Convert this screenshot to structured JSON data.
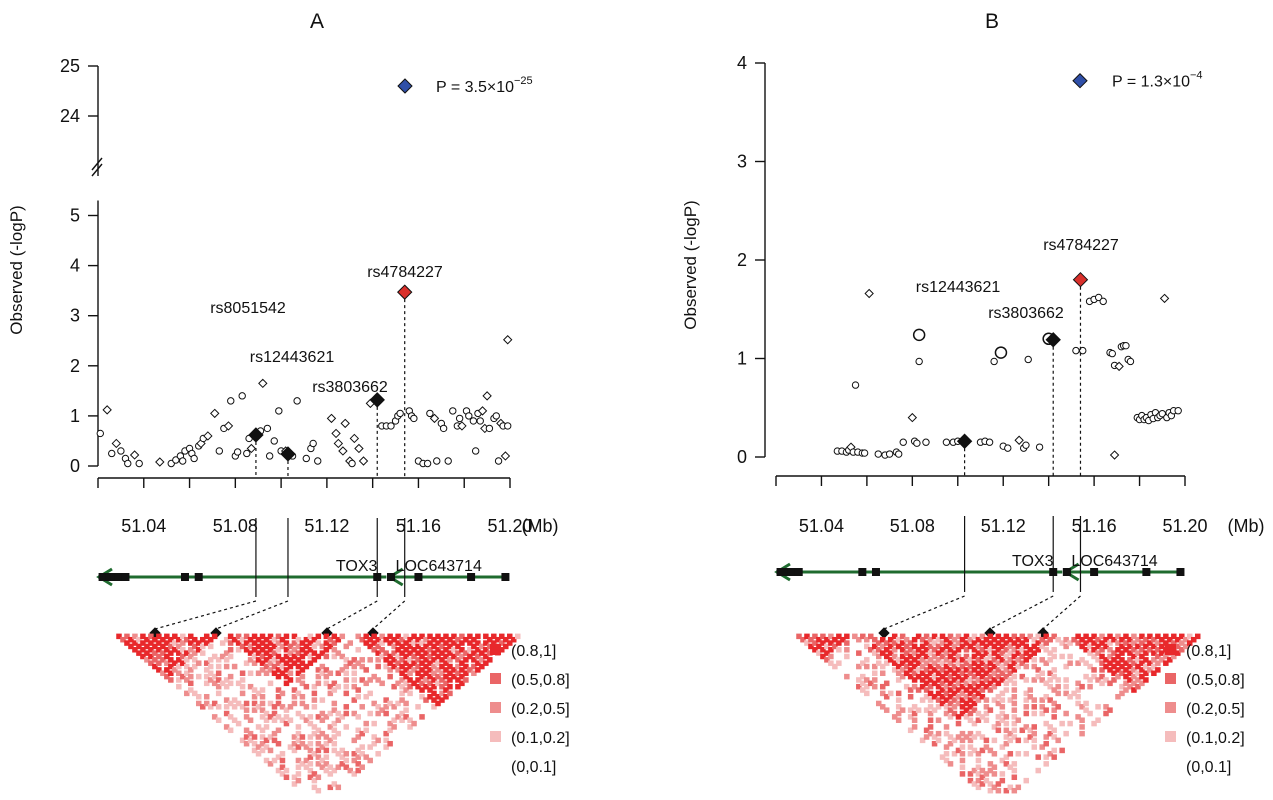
{
  "chart_data": [
    {
      "panel_title": "A",
      "type": "scatter",
      "ylabel": "Observed (-logP)",
      "x_unit": "(Mb)",
      "xlim": [
        51.02,
        51.2
      ],
      "x_ticks": [
        "51.04",
        "51.08",
        "51.12",
        "51.16",
        "51.20"
      ],
      "y_ticks_lower": [
        "0",
        "1",
        "2",
        "3",
        "4",
        "5"
      ],
      "y_ticks_upper": [
        "24",
        "25"
      ],
      "y_axis_break": true,
      "ylim_lower": [
        0,
        5
      ],
      "ylim_upper": [
        24,
        25
      ],
      "top_snp": {
        "x": 51.165,
        "y": 24.6,
        "label": "P = 3.5×10",
        "label_exp": "−25",
        "color": "#2f4fa8"
      },
      "highlighted_snps": [
        {
          "name": "rs8051542",
          "x": 51.089,
          "y": 0.62,
          "color": "#111111"
        },
        {
          "name": "rs12443621",
          "x": 51.103,
          "y": 0.24,
          "color": "#111111"
        },
        {
          "name": "rs3803662",
          "x": 51.142,
          "y": 1.32,
          "color": "#111111"
        },
        {
          "name": "rs4784227",
          "x": 51.154,
          "y": 3.47,
          "color": "#d9302b"
        }
      ],
      "points": [
        [
          51.021,
          0.65,
          "o"
        ],
        [
          51.024,
          1.12,
          "d"
        ],
        [
          51.026,
          0.25,
          "o"
        ],
        [
          51.028,
          0.45,
          "d"
        ],
        [
          51.03,
          0.3,
          "o"
        ],
        [
          51.032,
          0.15,
          "o"
        ],
        [
          51.033,
          0.05,
          "o"
        ],
        [
          51.036,
          0.22,
          "d"
        ],
        [
          51.038,
          0.05,
          "o"
        ],
        [
          51.047,
          0.08,
          "d"
        ],
        [
          51.052,
          0.05,
          "o"
        ],
        [
          51.054,
          0.12,
          "o"
        ],
        [
          51.056,
          0.2,
          "o"
        ],
        [
          51.057,
          0.1,
          "o"
        ],
        [
          51.058,
          0.3,
          "o"
        ],
        [
          51.06,
          0.35,
          "o"
        ],
        [
          51.061,
          0.25,
          "o"
        ],
        [
          51.062,
          0.15,
          "o"
        ],
        [
          51.064,
          0.4,
          "o"
        ],
        [
          51.065,
          0.45,
          "d"
        ],
        [
          51.066,
          0.55,
          "o"
        ],
        [
          51.068,
          0.6,
          "d"
        ],
        [
          51.071,
          1.05,
          "d"
        ],
        [
          51.073,
          0.3,
          "o"
        ],
        [
          51.075,
          0.75,
          "o"
        ],
        [
          51.077,
          0.8,
          "d"
        ],
        [
          51.078,
          1.3,
          "o"
        ],
        [
          51.08,
          0.2,
          "o"
        ],
        [
          51.081,
          0.28,
          "o"
        ],
        [
          51.083,
          1.4,
          "o"
        ],
        [
          51.085,
          0.25,
          "o"
        ],
        [
          51.086,
          0.55,
          "o"
        ],
        [
          51.087,
          0.35,
          "d"
        ],
        [
          51.091,
          0.7,
          "o"
        ],
        [
          51.092,
          1.65,
          "d"
        ],
        [
          51.094,
          0.75,
          "o"
        ],
        [
          51.095,
          0.2,
          "o"
        ],
        [
          51.097,
          0.5,
          "o"
        ],
        [
          51.099,
          1.1,
          "o"
        ],
        [
          51.1,
          0.3,
          "o"
        ],
        [
          51.102,
          0.3,
          "d"
        ],
        [
          51.105,
          0.2,
          "o"
        ],
        [
          51.107,
          1.3,
          "o"
        ],
        [
          51.111,
          0.15,
          "o"
        ],
        [
          51.113,
          0.35,
          "o"
        ],
        [
          51.114,
          0.45,
          "o"
        ],
        [
          51.116,
          0.1,
          "o"
        ],
        [
          51.122,
          0.95,
          "d"
        ],
        [
          51.124,
          0.65,
          "d"
        ],
        [
          51.125,
          0.45,
          "d"
        ],
        [
          51.127,
          0.3,
          "d"
        ],
        [
          51.128,
          0.85,
          "d"
        ],
        [
          51.13,
          0.1,
          "d"
        ],
        [
          51.131,
          0.05,
          "o"
        ],
        [
          51.132,
          0.55,
          "d"
        ],
        [
          51.134,
          0.35,
          "d"
        ],
        [
          51.136,
          0.1,
          "d"
        ],
        [
          51.139,
          1.25,
          "d"
        ],
        [
          51.144,
          0.8,
          "o"
        ],
        [
          51.146,
          0.8,
          "o"
        ],
        [
          51.148,
          0.8,
          "o"
        ],
        [
          51.15,
          0.9,
          "o"
        ],
        [
          51.151,
          1.0,
          "o"
        ],
        [
          51.152,
          1.05,
          "o"
        ],
        [
          51.156,
          1.1,
          "o"
        ],
        [
          51.157,
          1.0,
          "o"
        ],
        [
          51.158,
          0.95,
          "o"
        ],
        [
          51.16,
          0.1,
          "o"
        ],
        [
          51.162,
          0.05,
          "o"
        ],
        [
          51.164,
          0.05,
          "o"
        ],
        [
          51.165,
          1.05,
          "o"
        ],
        [
          51.167,
          0.95,
          "d"
        ],
        [
          51.168,
          0.1,
          "o"
        ],
        [
          51.17,
          0.85,
          "o"
        ],
        [
          51.171,
          0.75,
          "o"
        ],
        [
          51.173,
          0.1,
          "o"
        ],
        [
          51.175,
          1.1,
          "o"
        ],
        [
          51.177,
          0.8,
          "o"
        ],
        [
          51.178,
          0.95,
          "o"
        ],
        [
          51.179,
          0.8,
          "d"
        ],
        [
          51.181,
          1.1,
          "o"
        ],
        [
          51.182,
          1.0,
          "o"
        ],
        [
          51.184,
          0.9,
          "o"
        ],
        [
          51.185,
          0.3,
          "o"
        ],
        [
          51.186,
          1.05,
          "o"
        ],
        [
          51.187,
          0.9,
          "o"
        ],
        [
          51.188,
          1.1,
          "d"
        ],
        [
          51.189,
          0.75,
          "d"
        ],
        [
          51.19,
          1.4,
          "d"
        ],
        [
          51.191,
          0.75,
          "o"
        ],
        [
          51.193,
          0.95,
          "o"
        ],
        [
          51.194,
          1.0,
          "o"
        ],
        [
          51.195,
          0.1,
          "o"
        ],
        [
          51.196,
          0.85,
          "d"
        ],
        [
          51.197,
          0.8,
          "o"
        ],
        [
          51.198,
          0.2,
          "d"
        ],
        [
          51.199,
          0.8,
          "o"
        ],
        [
          51.199,
          2.52,
          "d"
        ]
      ],
      "genes": [
        {
          "name": "TOX3",
          "start": 51.02,
          "end": 51.146,
          "strand": "-"
        },
        {
          "name": "LOC643714",
          "start": 51.147,
          "end": 51.199,
          "strand": "-"
        }
      ],
      "exons": [
        51.022,
        51.025,
        51.027,
        51.029,
        51.032,
        51.058,
        51.064,
        51.142,
        51.148,
        51.16,
        51.183,
        51.198
      ],
      "ld_legend": [
        "(0.8,1]",
        "(0.5,0.8]",
        "(0.2,0.5]",
        "(0.1,0.2]",
        "(0,0.1]"
      ],
      "ld_colors": [
        "#e8282b",
        "#ea6566",
        "#ee8d8d",
        "#f5bcbc",
        "#ffffff"
      ]
    },
    {
      "panel_title": "B",
      "type": "scatter",
      "ylabel": "Observed (-logP)",
      "x_unit": "(Mb)",
      "xlim": [
        51.02,
        51.2
      ],
      "x_ticks": [
        "51.04",
        "51.08",
        "51.12",
        "51.16",
        "51.20"
      ],
      "y_ticks": [
        "0",
        "1",
        "2",
        "3",
        "4"
      ],
      "ylim": [
        0,
        4
      ],
      "top_snp": {
        "x": 51.165,
        "y": 3.82,
        "label": "P = 1.3×10",
        "label_exp": "−4",
        "color": "#2f4fa8"
      },
      "highlighted_snps": [
        {
          "name": "rs12443621",
          "x": 51.103,
          "y": 0.16,
          "color": "#111111"
        },
        {
          "name": "rs3803662",
          "x": 51.142,
          "y": 1.19,
          "color": "#111111"
        },
        {
          "name": "rs4784227",
          "x": 51.154,
          "y": 1.8,
          "color": "#d9302b"
        }
      ],
      "points": [
        [
          51.047,
          0.06,
          "o"
        ],
        [
          51.049,
          0.06,
          "o"
        ],
        [
          51.051,
          0.05,
          "o"
        ],
        [
          51.052,
          0.07,
          "o"
        ],
        [
          51.053,
          0.1,
          "d"
        ],
        [
          51.054,
          0.05,
          "o"
        ],
        [
          51.055,
          0.73,
          "o"
        ],
        [
          51.056,
          0.05,
          "o"
        ],
        [
          51.058,
          0.04,
          "o"
        ],
        [
          51.059,
          0.04,
          "o"
        ],
        [
          51.061,
          1.66,
          "d"
        ],
        [
          51.065,
          0.03,
          "o"
        ],
        [
          51.068,
          0.02,
          "o"
        ],
        [
          51.07,
          0.03,
          "o"
        ],
        [
          51.073,
          0.05,
          "o"
        ],
        [
          51.074,
          0.03,
          "o"
        ],
        [
          51.076,
          0.15,
          "o"
        ],
        [
          51.08,
          0.4,
          "d"
        ],
        [
          51.081,
          0.16,
          "o"
        ],
        [
          51.082,
          0.14,
          "o"
        ],
        [
          51.083,
          0.97,
          "o"
        ],
        [
          51.083,
          1.24,
          "O"
        ],
        [
          51.086,
          0.15,
          "o"
        ],
        [
          51.095,
          0.15,
          "o"
        ],
        [
          51.098,
          0.15,
          "o"
        ],
        [
          51.1,
          0.16,
          "o"
        ],
        [
          51.11,
          0.15,
          "o"
        ],
        [
          51.112,
          0.16,
          "o"
        ],
        [
          51.114,
          0.15,
          "o"
        ],
        [
          51.116,
          0.97,
          "o"
        ],
        [
          51.119,
          1.06,
          "O"
        ],
        [
          51.12,
          0.11,
          "o"
        ],
        [
          51.122,
          0.09,
          "o"
        ],
        [
          51.127,
          0.17,
          "d"
        ],
        [
          51.129,
          0.09,
          "o"
        ],
        [
          51.13,
          0.12,
          "o"
        ],
        [
          51.131,
          0.99,
          "o"
        ],
        [
          51.136,
          0.1,
          "o"
        ],
        [
          51.14,
          1.2,
          "O"
        ],
        [
          51.152,
          1.08,
          "o"
        ],
        [
          51.155,
          1.08,
          "o"
        ],
        [
          51.158,
          1.58,
          "o"
        ],
        [
          51.16,
          1.6,
          "o"
        ],
        [
          51.162,
          1.62,
          "o"
        ],
        [
          51.164,
          1.58,
          "o"
        ],
        [
          51.167,
          1.06,
          "o"
        ],
        [
          51.168,
          1.05,
          "o"
        ],
        [
          51.169,
          0.93,
          "o"
        ],
        [
          51.169,
          0.02,
          "d"
        ],
        [
          51.171,
          0.92,
          "d"
        ],
        [
          51.172,
          1.12,
          "o"
        ],
        [
          51.173,
          1.13,
          "o"
        ],
        [
          51.174,
          1.13,
          "o"
        ],
        [
          51.175,
          0.99,
          "o"
        ],
        [
          51.176,
          0.97,
          "o"
        ],
        [
          51.179,
          0.4,
          "o"
        ],
        [
          51.18,
          0.38,
          "o"
        ],
        [
          51.181,
          0.42,
          "o"
        ],
        [
          51.182,
          0.38,
          "o"
        ],
        [
          51.183,
          0.4,
          "o"
        ],
        [
          51.184,
          0.37,
          "o"
        ],
        [
          51.185,
          0.43,
          "o"
        ],
        [
          51.186,
          0.39,
          "o"
        ],
        [
          51.187,
          0.45,
          "o"
        ],
        [
          51.188,
          0.4,
          "o"
        ],
        [
          51.189,
          0.42,
          "o"
        ],
        [
          51.19,
          0.44,
          "o"
        ],
        [
          51.191,
          1.61,
          "d"
        ],
        [
          51.192,
          0.4,
          "o"
        ],
        [
          51.193,
          0.45,
          "o"
        ],
        [
          51.194,
          0.42,
          "o"
        ],
        [
          51.195,
          0.47,
          "o"
        ],
        [
          51.197,
          0.47,
          "o"
        ]
      ],
      "genes": [
        {
          "name": "TOX3",
          "start": 51.02,
          "end": 51.146,
          "strand": "-"
        },
        {
          "name": "LOC643714",
          "start": 51.147,
          "end": 51.199,
          "strand": "-"
        }
      ],
      "exons": [
        51.022,
        51.024,
        51.027,
        51.03,
        51.058,
        51.064,
        51.142,
        51.148,
        51.16,
        51.183,
        51.198
      ],
      "ld_legend": [
        "(0.8,1]",
        "(0.5,0.8]",
        "(0.2,0.5]",
        "(0.1,0.2]",
        "(0,0.1]"
      ],
      "ld_colors": [
        "#e8282b",
        "#ea6566",
        "#ee8d8d",
        "#f5bcbc",
        "#ffffff"
      ]
    }
  ]
}
